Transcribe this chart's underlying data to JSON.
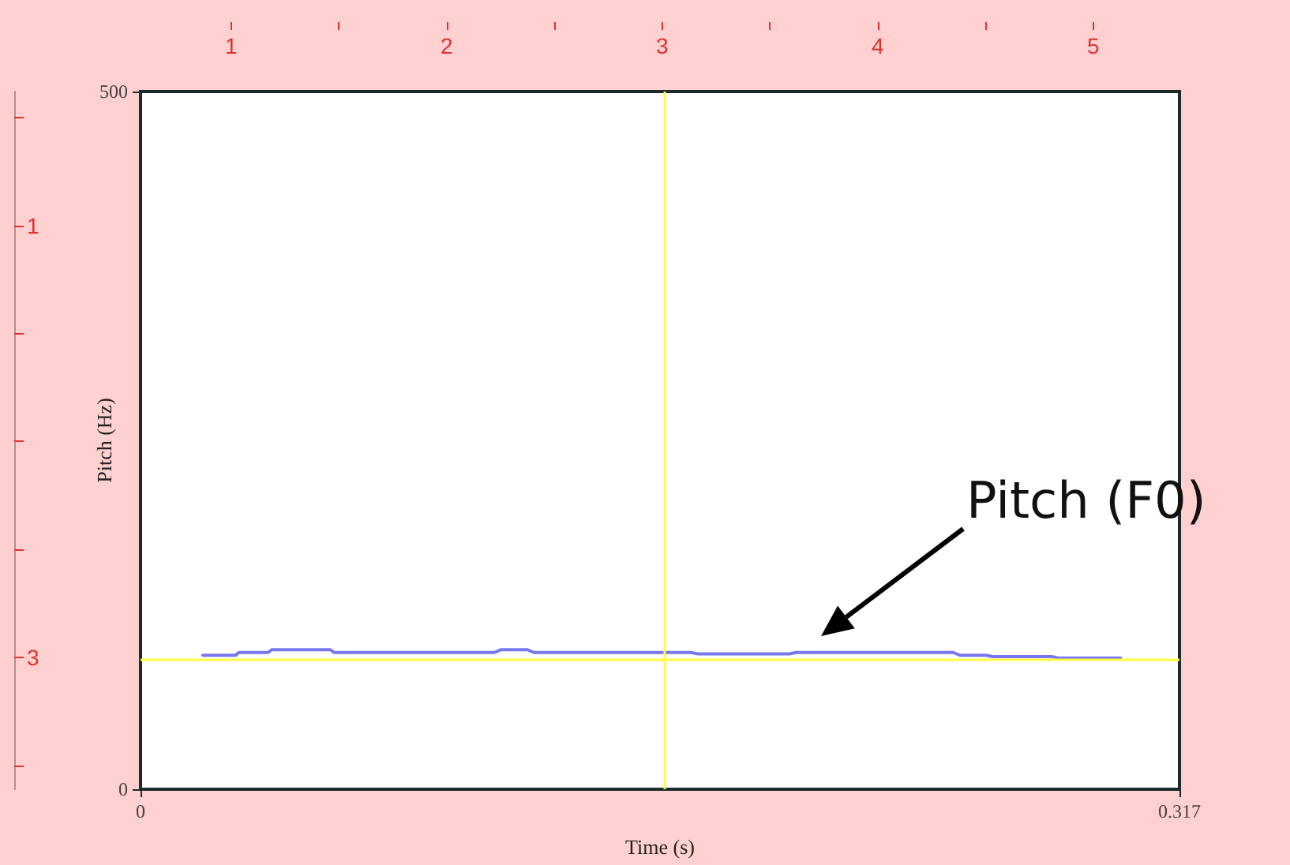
{
  "chart_data": {
    "type": "line",
    "xlabel": "Time (s)",
    "ylabel": "Pitch (Hz)",
    "xlim": [
      0,
      0.317
    ],
    "xticks": [
      0,
      0.317
    ],
    "ylim": [
      0,
      500
    ],
    "yticks": [
      0,
      500
    ],
    "x2lim": [
      0.58,
      5.4
    ],
    "x2ticks": [
      1,
      {
        "value": 1.5,
        "label": null
      },
      2,
      {
        "value": 2.5,
        "label": null
      },
      3,
      {
        "value": 3.5,
        "label": null
      },
      4,
      {
        "value": 4.5,
        "label": null
      },
      5
    ],
    "y2lim": [
      3.61,
      0.38
    ],
    "y2ticks": [
      {
        "value": 0.5,
        "label": null
      },
      1,
      {
        "value": 1.5,
        "label": null
      },
      {
        "value": 2,
        "label": null
      },
      {
        "value": 2.5,
        "label": null
      },
      3,
      {
        "value": 3.5,
        "label": null
      }
    ],
    "series": [
      {
        "color": "#7878ee",
        "x": [
          0.019,
          0.029,
          0.03,
          0.039,
          0.04,
          0.058,
          0.059,
          0.108,
          0.11,
          0.118,
          0.12,
          0.168,
          0.17,
          0.198,
          0.2,
          0.248,
          0.25,
          0.258,
          0.26,
          0.278,
          0.28,
          0.299
        ],
        "values": [
          96,
          96,
          98,
          98,
          100,
          100,
          98,
          98,
          100,
          100,
          98,
          98,
          97,
          97,
          98,
          98,
          96,
          96,
          95,
          95,
          94,
          94
        ]
      }
    ],
    "ref_lines": [
      {
        "axis": "x",
        "value": 0.159,
        "color": "#ffff40"
      },
      {
        "axis": "y",
        "value": 93,
        "color": "#ffff40"
      }
    ],
    "annotations": [
      "Pitch (F0)"
    ],
    "grid": false,
    "marker": "none",
    "line_style": "solid"
  }
}
